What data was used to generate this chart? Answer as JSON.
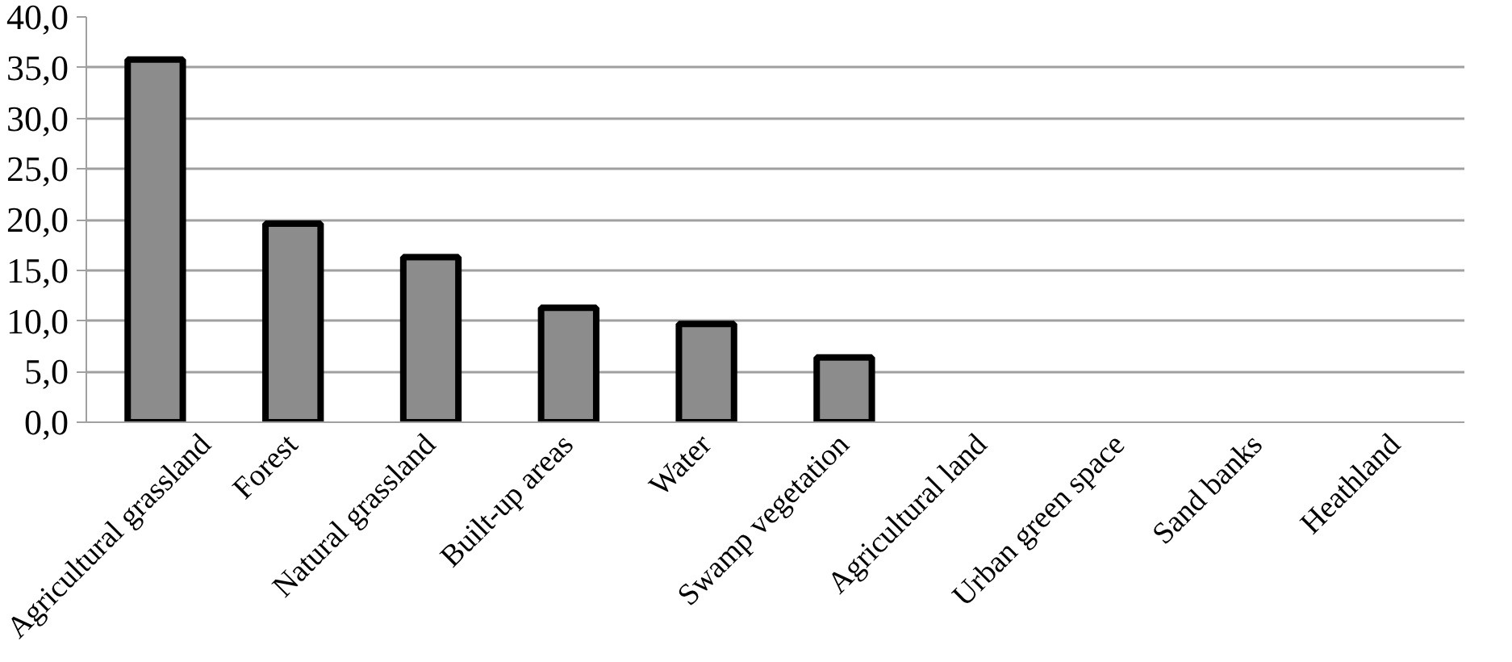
{
  "chart_data": {
    "type": "bar",
    "categories": [
      "Agricultural grassland",
      "Forest",
      "Natural grassland",
      "Built-up areas",
      "Water",
      "Swamp vegetation",
      "Agricultural land",
      "Urban green space",
      "Sand banks",
      "Heathland"
    ],
    "values": [
      35.8,
      19.6,
      16.3,
      11.3,
      9.7,
      6.4,
      0,
      0,
      0,
      0
    ],
    "color": "#8c8c8c",
    "ylim": [
      0,
      40
    ],
    "yticks": [
      {
        "value": 0,
        "label": "0,0"
      },
      {
        "value": 5,
        "label": "5,0"
      },
      {
        "value": 10,
        "label": "10,0"
      },
      {
        "value": 15,
        "label": "15,0"
      },
      {
        "value": 20,
        "label": "20,0"
      },
      {
        "value": 25,
        "label": "25,0"
      },
      {
        "value": 30,
        "label": "30,0"
      },
      {
        "value": 35,
        "label": "35,0"
      },
      {
        "value": 40,
        "label": "40,0"
      }
    ],
    "grid": "y"
  }
}
